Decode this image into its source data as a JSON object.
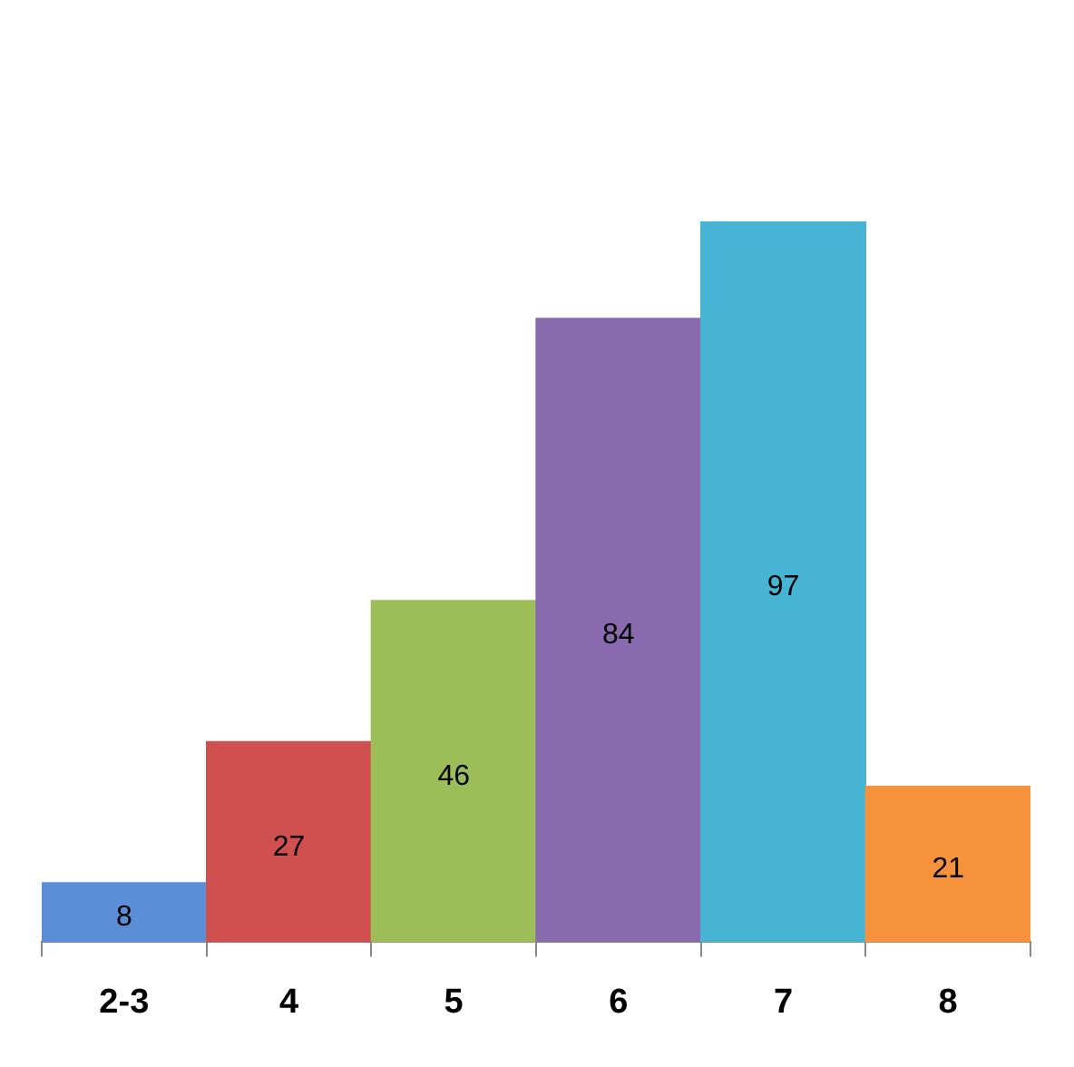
{
  "chart_data": {
    "type": "bar",
    "categories": [
      "2-3",
      "4",
      "5",
      "6",
      "7",
      "8"
    ],
    "values": [
      8,
      27,
      46,
      84,
      97,
      21
    ],
    "colors": [
      "#5a8fd8",
      "#d0504f",
      "#9bbe58",
      "#8a6aae",
      "#48b4d4",
      "#f7923c"
    ],
    "data_labels": true,
    "grid": false,
    "legend": false,
    "tick_labels": "x"
  }
}
